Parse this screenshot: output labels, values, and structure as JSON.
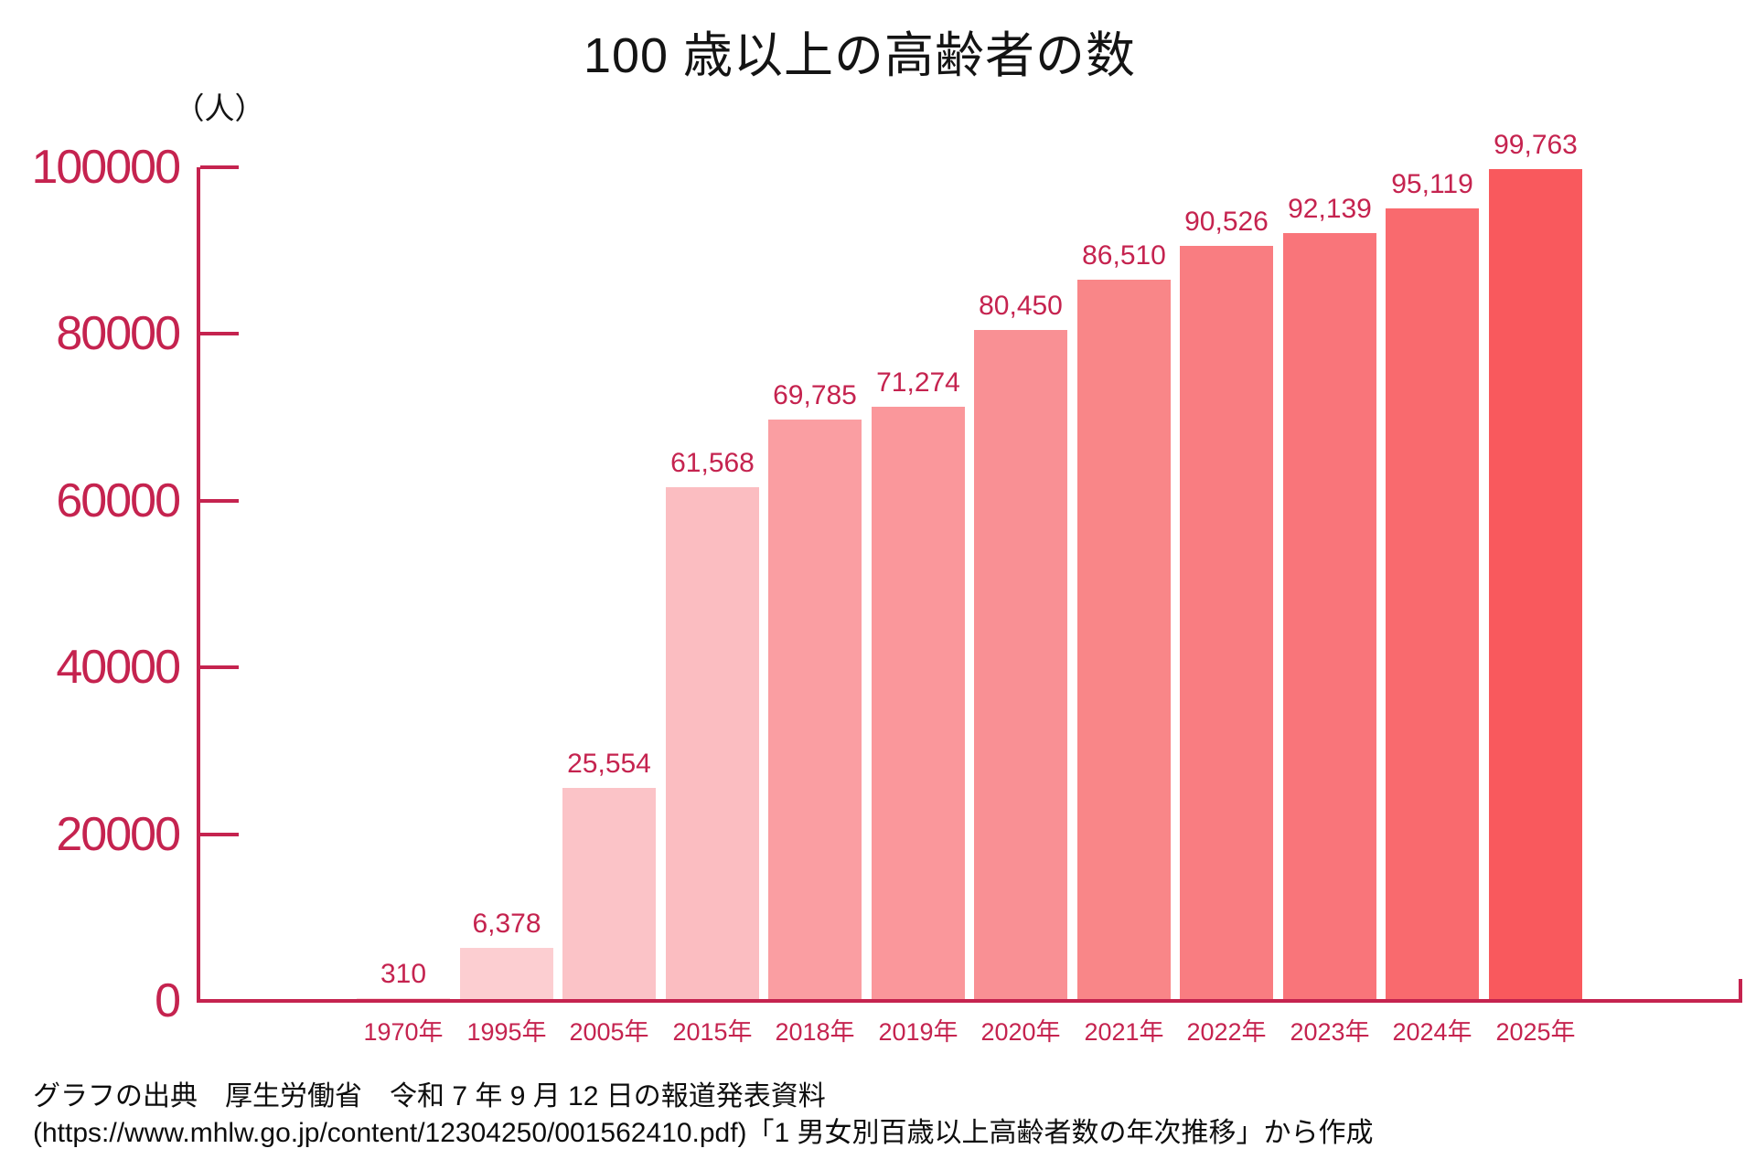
{
  "background_color": "#FFFFFF",
  "accent_color": "#C5234F",
  "text_color": "#141414",
  "chart_data": {
    "type": "bar",
    "title": "100 歳以上の高齢者の数",
    "unit_label": "（人）",
    "categories": [
      "1970年",
      "1995年",
      "2005年",
      "2015年",
      "2018年",
      "2019年",
      "2020年",
      "2021年",
      "2022年",
      "2023年",
      "2024年",
      "2025年"
    ],
    "values": [
      310,
      6378,
      25554,
      61568,
      69785,
      71274,
      80450,
      86510,
      90526,
      92139,
      95119,
      99763
    ],
    "value_labels": [
      "310",
      "6,378",
      "25,554",
      "61,568",
      "69,785",
      "71,274",
      "80,450",
      "86,510",
      "90,526",
      "92,139",
      "95,119",
      "99,763"
    ],
    "bar_colors": [
      "#FCD6D9",
      "#FCCED1",
      "#FBC3C7",
      "#FBBDC1",
      "#FA9EA2",
      "#FA979B",
      "#F99094",
      "#F98688",
      "#F97D81",
      "#F9757A",
      "#F96A6E",
      "#F9595D"
    ],
    "ylim": [
      0,
      100000
    ],
    "yticks": [
      0,
      20000,
      40000,
      60000,
      80000,
      100000
    ],
    "ytick_labels": [
      "0",
      "20000",
      "40000",
      "60000",
      "80000",
      "100000"
    ],
    "xlabel": "",
    "ylabel": "（人）",
    "grid": false,
    "legend": "none",
    "axis_color": "#C5234F",
    "tick_label_color": "#C5234F",
    "value_label_color": "#C5234F"
  },
  "source": {
    "line1": "グラフの出典　厚生労働省　令和 7 年 9 月 12 日の報道発表資料",
    "line2": "(https://www.mhlw.go.jp/content/12304250/001562410.pdf)「1 男女別百歳以上高齢者数の年次推移」から作成"
  }
}
